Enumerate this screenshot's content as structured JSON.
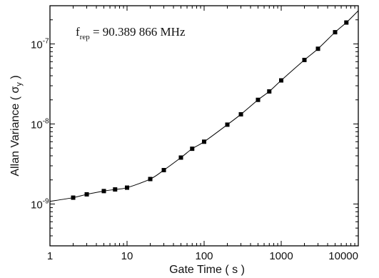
{
  "chart_data": {
    "type": "line",
    "xlabel": "Gate Time ( s )",
    "ylabel": {
      "prefix": "Allan Variance ( ",
      "symbol": "σ",
      "subscript": "y",
      "suffix": " )"
    },
    "annotation": {
      "symbol": "f",
      "subscript": "rep",
      "text": " = 90.389 866 MHz"
    },
    "x_scale": "log",
    "y_scale": "log",
    "xlim": [
      1,
      10000
    ],
    "ylim": [
      3e-10,
      3e-07
    ],
    "x_ticks": [
      {
        "value": 1,
        "label": "1"
      },
      {
        "value": 10,
        "label": "10"
      },
      {
        "value": 100,
        "label": "100"
      },
      {
        "value": 1000,
        "label": "1000"
      },
      {
        "value": 10000,
        "label": "10000"
      }
    ],
    "y_ticks": [
      {
        "value": 1e-09,
        "base": "10",
        "exp": "-9"
      },
      {
        "value": 1e-08,
        "base": "10",
        "exp": "-8"
      },
      {
        "value": 1e-07,
        "base": "10",
        "exp": "-7"
      }
    ],
    "grid": false,
    "series": [
      {
        "points": [
          {
            "x": 2,
            "y": 1.2e-09
          },
          {
            "x": 3,
            "y": 1.32e-09
          },
          {
            "x": 5,
            "y": 1.45e-09
          },
          {
            "x": 7,
            "y": 1.52e-09
          },
          {
            "x": 10,
            "y": 1.6e-09
          },
          {
            "x": 20,
            "y": 2.05e-09
          },
          {
            "x": 30,
            "y": 2.65e-09
          },
          {
            "x": 50,
            "y": 3.8e-09
          },
          {
            "x": 70,
            "y": 4.9e-09
          },
          {
            "x": 100,
            "y": 6e-09
          },
          {
            "x": 200,
            "y": 9.8e-09
          },
          {
            "x": 300,
            "y": 1.32e-08
          },
          {
            "x": 500,
            "y": 2e-08
          },
          {
            "x": 700,
            "y": 2.55e-08
          },
          {
            "x": 1000,
            "y": 3.5e-08
          },
          {
            "x": 2000,
            "y": 6.3e-08
          },
          {
            "x": 3000,
            "y": 8.7e-08
          },
          {
            "x": 5000,
            "y": 1.4e-07
          },
          {
            "x": 7000,
            "y": 1.85e-07
          }
        ],
        "curve": [
          {
            "x": 1,
            "y": 1.08e-09
          },
          {
            "x": 2,
            "y": 1.2e-09
          },
          {
            "x": 3,
            "y": 1.32e-09
          },
          {
            "x": 5,
            "y": 1.45e-09
          },
          {
            "x": 7,
            "y": 1.52e-09
          },
          {
            "x": 10,
            "y": 1.6e-09
          },
          {
            "x": 20,
            "y": 2.05e-09
          },
          {
            "x": 30,
            "y": 2.65e-09
          },
          {
            "x": 50,
            "y": 3.8e-09
          },
          {
            "x": 70,
            "y": 4.9e-09
          },
          {
            "x": 100,
            "y": 6e-09
          },
          {
            "x": 200,
            "y": 9.8e-09
          },
          {
            "x": 300,
            "y": 1.32e-08
          },
          {
            "x": 500,
            "y": 2e-08
          },
          {
            "x": 700,
            "y": 2.55e-08
          },
          {
            "x": 1000,
            "y": 3.5e-08
          },
          {
            "x": 2000,
            "y": 6.3e-08
          },
          {
            "x": 3000,
            "y": 8.7e-08
          },
          {
            "x": 5000,
            "y": 1.4e-07
          },
          {
            "x": 7000,
            "y": 1.85e-07
          },
          {
            "x": 10000,
            "y": 2.6e-07
          }
        ]
      }
    ]
  }
}
